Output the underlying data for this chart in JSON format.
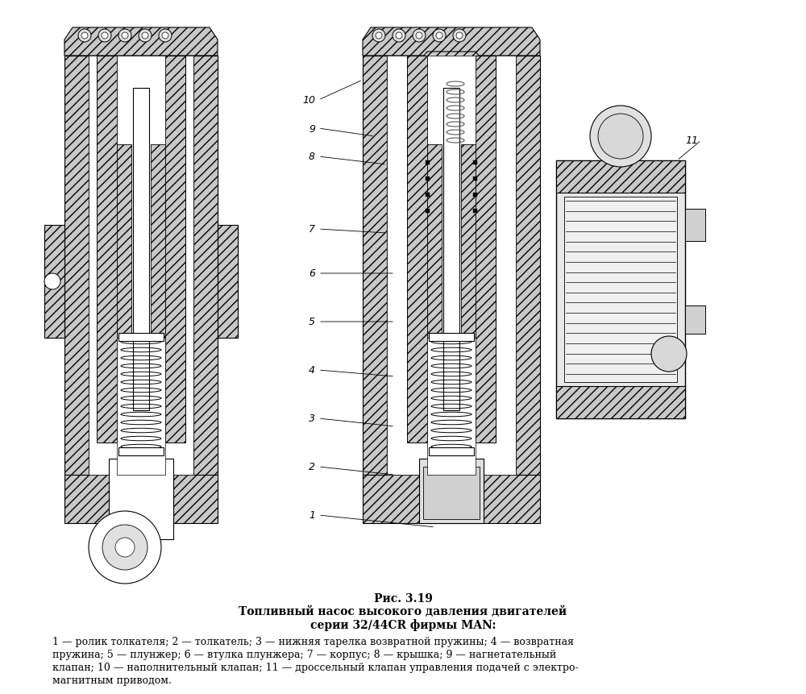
{
  "figure_title": "Рис. 3.19",
  "figure_subtitle1": "Топливный насос высокого давления двигателей",
  "figure_subtitle2": "серии 32/44CR фирмы MAN:",
  "caption_line1": "1 — ролик толкателя; 2 — толкатель; 3 — нижняя тарелка возвратной пружины; 4 — возвратная",
  "caption_line2": "пружина; 5 — плунжер; 6 — втулка плунжера; 7 — корпус; 8 — крышка; 9 — нагнетательный",
  "caption_line3": "клапан; 10 — наполнительный клапан; 11 — дроссельный клапан управления подачей с электро-",
  "caption_line4": "магнитным приводом.",
  "bg_color": "#ffffff",
  "text_color": "#000000",
  "fig_width": 10.0,
  "fig_height": 8.62,
  "dpi": 100
}
